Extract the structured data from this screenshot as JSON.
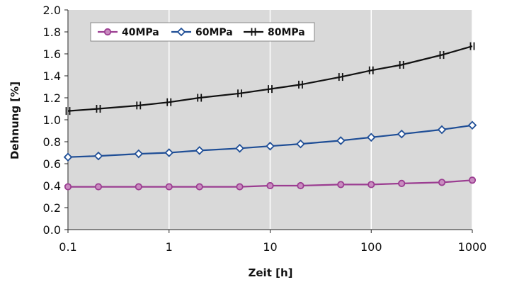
{
  "chart_data": {
    "type": "line",
    "title": "",
    "xlabel": "Zeit [h]",
    "ylabel": "Dehnung [%]",
    "x_scale": "log",
    "xlim": [
      0.1,
      1000
    ],
    "ylim": [
      0.0,
      2.0
    ],
    "x_ticks": [
      "0.1",
      "1",
      "10",
      "100",
      "1000"
    ],
    "y_ticks": [
      "0.0",
      "0.2",
      "0.4",
      "0.6",
      "0.8",
      "1.0",
      "1.2",
      "1.4",
      "1.6",
      "1.8",
      "2.0"
    ],
    "grid": "vertical decades",
    "legend_position": "top-left",
    "plot_background": "#d9d9d9",
    "series": [
      {
        "name": "40MPa",
        "color": "#9b3d91",
        "marker": "circle",
        "x": [
          0.1,
          0.2,
          0.5,
          1,
          2,
          5,
          10,
          20,
          50,
          100,
          200,
          500,
          1000
        ],
        "y": [
          0.39,
          0.39,
          0.39,
          0.39,
          0.39,
          0.39,
          0.4,
          0.4,
          0.41,
          0.41,
          0.42,
          0.43,
          0.45
        ]
      },
      {
        "name": "60MPa",
        "color": "#1f4e96",
        "marker": "diamond",
        "x": [
          0.1,
          0.2,
          0.5,
          1,
          2,
          5,
          10,
          20,
          50,
          100,
          200,
          500,
          1000
        ],
        "y": [
          0.66,
          0.67,
          0.69,
          0.7,
          0.72,
          0.74,
          0.76,
          0.78,
          0.81,
          0.84,
          0.87,
          0.91,
          0.95
        ]
      },
      {
        "name": "80MPa",
        "color": "#111111",
        "marker": "tick",
        "x": [
          0.1,
          0.2,
          0.5,
          1,
          2,
          5,
          10,
          20,
          50,
          100,
          200,
          500,
          1000
        ],
        "y": [
          1.08,
          1.1,
          1.13,
          1.16,
          1.2,
          1.24,
          1.28,
          1.32,
          1.39,
          1.45,
          1.5,
          1.59,
          1.67
        ]
      }
    ]
  }
}
